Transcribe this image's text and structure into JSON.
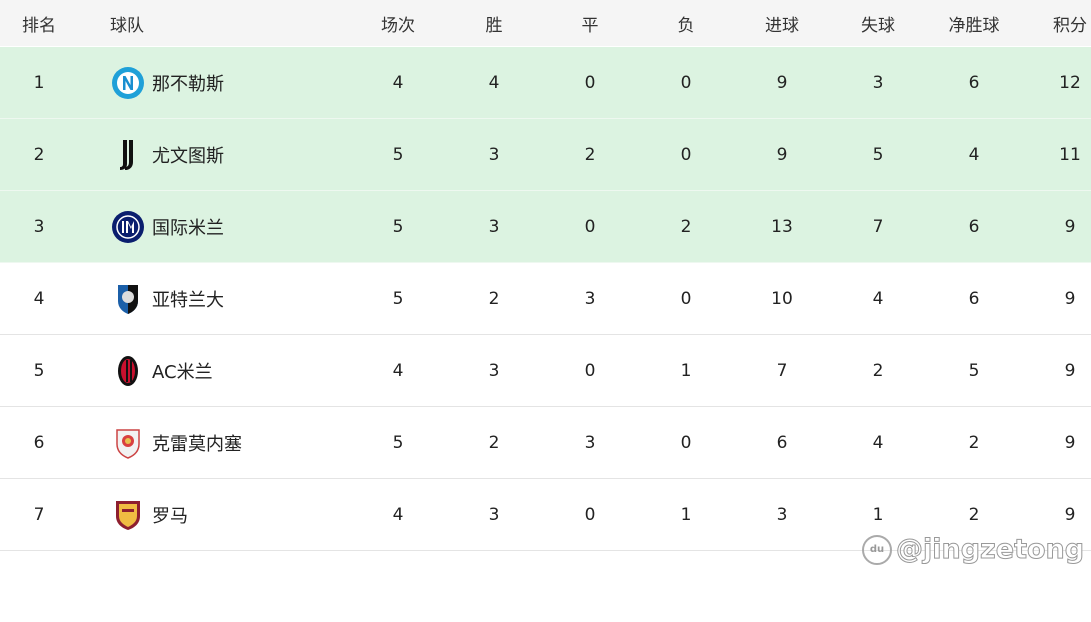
{
  "headers": [
    "排名",
    "球队",
    "场次",
    "胜",
    "平",
    "负",
    "进球",
    "失球",
    "净胜球",
    "积分"
  ],
  "rows": [
    {
      "rank": "1",
      "team": "那不勒斯",
      "logo": "napoli-logo",
      "played": "4",
      "w": "4",
      "d": "0",
      "l": "0",
      "gf": "9",
      "ga": "3",
      "gd": "6",
      "pts": "12"
    },
    {
      "rank": "2",
      "team": "尤文图斯",
      "logo": "juventus-logo",
      "played": "5",
      "w": "3",
      "d": "2",
      "l": "0",
      "gf": "9",
      "ga": "5",
      "gd": "4",
      "pts": "11"
    },
    {
      "rank": "3",
      "team": "国际米兰",
      "logo": "inter-logo",
      "played": "5",
      "w": "3",
      "d": "0",
      "l": "2",
      "gf": "13",
      "ga": "7",
      "gd": "6",
      "pts": "9"
    },
    {
      "rank": "4",
      "team": "亚特兰大",
      "logo": "atalanta-logo",
      "played": "5",
      "w": "2",
      "d": "3",
      "l": "0",
      "gf": "10",
      "ga": "4",
      "gd": "6",
      "pts": "9"
    },
    {
      "rank": "5",
      "team": "AC米兰",
      "logo": "ac-milan-logo",
      "played": "4",
      "w": "3",
      "d": "0",
      "l": "1",
      "gf": "7",
      "ga": "2",
      "gd": "5",
      "pts": "9"
    },
    {
      "rank": "6",
      "team": "克雷莫内塞",
      "logo": "cremonese-logo",
      "played": "5",
      "w": "2",
      "d": "3",
      "l": "0",
      "gf": "6",
      "ga": "4",
      "gd": "2",
      "pts": "9"
    },
    {
      "rank": "7",
      "team": "罗马",
      "logo": "roma-logo",
      "played": "4",
      "w": "3",
      "d": "0",
      "l": "1",
      "gf": "3",
      "ga": "1",
      "gd": "2",
      "pts": "9"
    }
  ],
  "highlight_color": "#dcf3e1",
  "watermark": "@jingzetong"
}
